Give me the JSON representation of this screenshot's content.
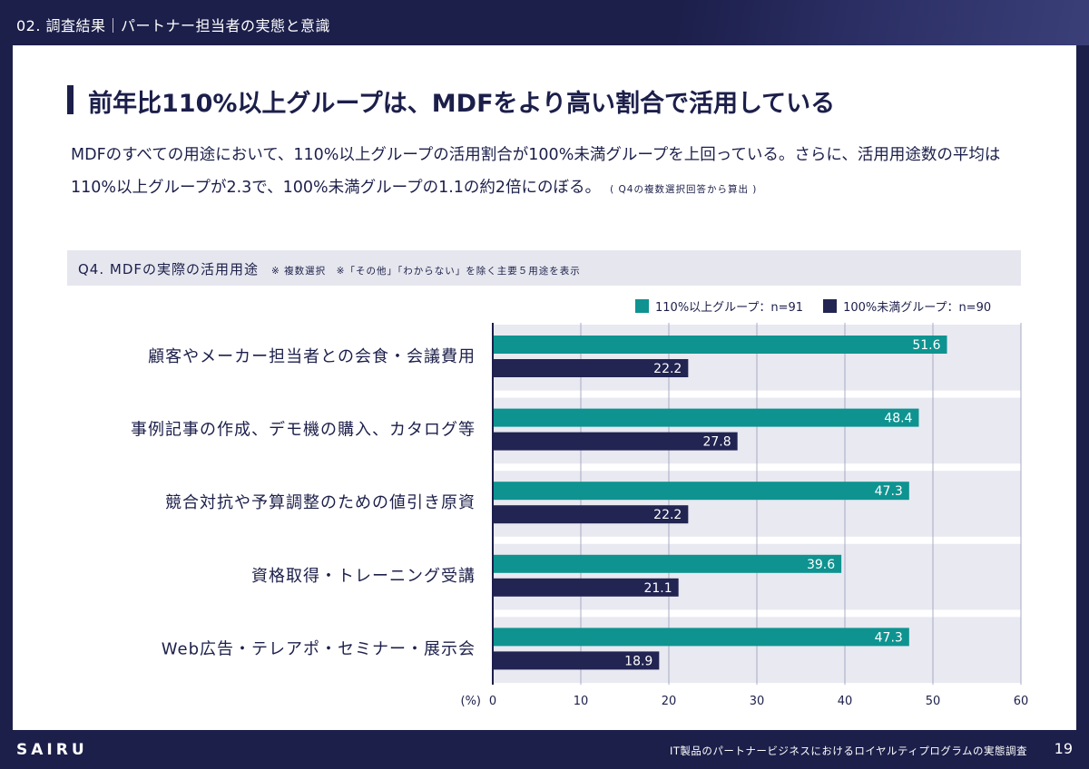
{
  "header": {
    "section": "02. 調査結果｜パートナー担当者の実態と意識"
  },
  "heading": "前年比110%以上グループは、MDFをより高い割合で活用している",
  "lead": {
    "text": "MDFのすべての用途において、110%以上グループの活用割合が100%未満グループを上回っている。さらに、活用用途数の平均は110%以上グループが2.3で、100%未満グループの1.1の約2倍にのぼる。",
    "note": "( Q4の複数選択回答から算出 )"
  },
  "question": {
    "title": "Q4. MDFの実際の活用用途",
    "note": "※ 複数選択　※「その他」「わからない」を除く主要５用途を表示"
  },
  "colors": {
    "primary": "#1c1f4a",
    "teal": "#0e9390",
    "navy": "#222452",
    "band": "#e8e9f1"
  },
  "chart_data": {
    "type": "bar",
    "orientation": "horizontal",
    "categories": [
      "顧客やメーカー担当者との会食・会議費用",
      "事例記事の作成、デモ機の購入、カタログ等",
      "競合対抗や予算調整のための値引き原資",
      "資格取得・トレーニング受講",
      "Web広告・テレアポ・セミナー・展示会"
    ],
    "series": [
      {
        "name": "110%以上グループ：n=91",
        "color": "#0e9390",
        "values": [
          51.6,
          48.4,
          47.3,
          39.6,
          47.3
        ]
      },
      {
        "name": "100%未満グループ：n=90",
        "color": "#222452",
        "values": [
          22.2,
          27.8,
          22.2,
          21.1,
          18.9
        ]
      }
    ],
    "xlim": [
      0,
      60
    ],
    "xticks": [
      0,
      10,
      20,
      30,
      40,
      50,
      60
    ],
    "xunit": "(%)",
    "grid": true,
    "legend": "top-right"
  },
  "footer": {
    "logo": "SAIRU",
    "report_title": "IT製品のパートナービジネスにおけるロイヤルティプログラムの実態調査",
    "page": "19"
  }
}
